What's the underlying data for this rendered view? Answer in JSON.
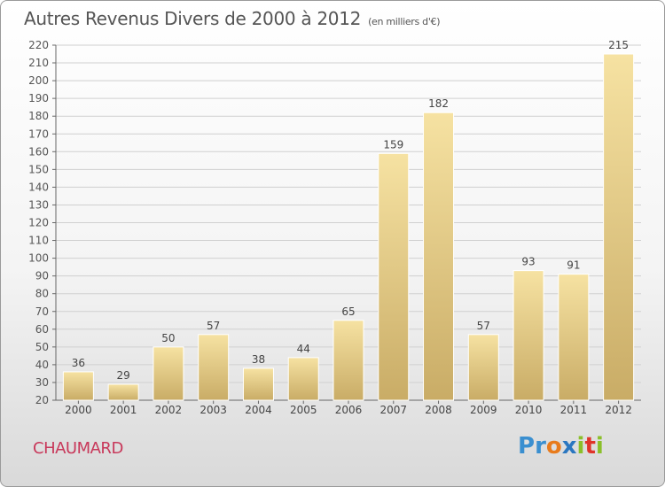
{
  "header": {
    "title": "Autres Revenus Divers de 2000 à 2012",
    "subtitle": "(en milliers d'€)"
  },
  "commune": "CHAUMARD",
  "logo_text": "Proxiti",
  "colors": {
    "bar_light": "#f6e2a2",
    "bar_dark": "#c9ac66",
    "title": "#555555",
    "commune": "#c8385a",
    "grid": "#d0d0d0"
  },
  "chart_data": {
    "type": "bar",
    "title": "Autres Revenus Divers de 2000 à 2012",
    "subtitle": "(en milliers d'€)",
    "xlabel": "",
    "ylabel": "",
    "categories": [
      "2000",
      "2001",
      "2002",
      "2003",
      "2004",
      "2005",
      "2006",
      "2007",
      "2008",
      "2009",
      "2010",
      "2011",
      "2012"
    ],
    "values": [
      36,
      29,
      50,
      57,
      38,
      44,
      65,
      159,
      182,
      57,
      93,
      91,
      215
    ],
    "ylim": [
      20,
      220
    ],
    "yticks": [
      20,
      30,
      40,
      50,
      60,
      70,
      80,
      90,
      100,
      110,
      120,
      130,
      140,
      150,
      160,
      170,
      180,
      190,
      200,
      210,
      220
    ],
    "grid": true,
    "data_labels": true
  }
}
